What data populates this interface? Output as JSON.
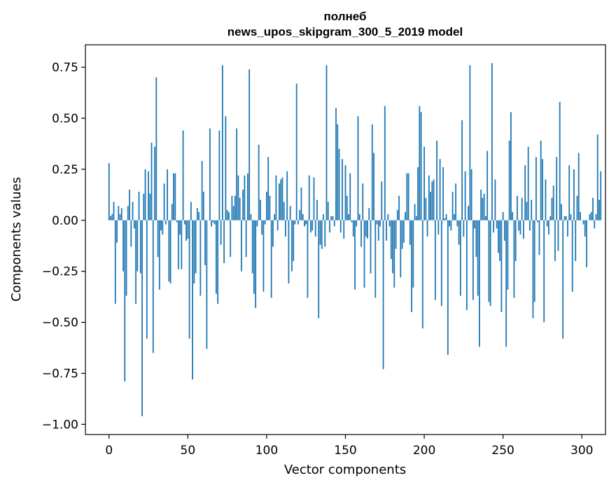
{
  "chart_data": {
    "type": "bar",
    "title_line1": "полнеб",
    "title_line2": "news_upos_skipgram_300_5_2019 model",
    "xlabel": "Vector components",
    "ylabel": "Components values",
    "xlim": [
      -15,
      315
    ],
    "ylim": [
      -1.05,
      0.86
    ],
    "xticks": [
      {
        "value": 0,
        "label": "0"
      },
      {
        "value": 50,
        "label": "50"
      },
      {
        "value": 100,
        "label": "100"
      },
      {
        "value": 150,
        "label": "150"
      },
      {
        "value": 200,
        "label": "200"
      },
      {
        "value": 250,
        "label": "250"
      },
      {
        "value": 300,
        "label": "300"
      }
    ],
    "yticks": [
      {
        "value": 0.75,
        "label": "0.75"
      },
      {
        "value": 0.5,
        "label": "0.50"
      },
      {
        "value": 0.25,
        "label": "0.25"
      },
      {
        "value": 0.0,
        "label": "0.00"
      },
      {
        "value": -0.25,
        "label": "−0.25"
      },
      {
        "value": -0.5,
        "label": "−0.50"
      },
      {
        "value": -0.75,
        "label": "−0.75"
      },
      {
        "value": -1.0,
        "label": "−1.00"
      }
    ],
    "bar_color": "#1f77b4",
    "values": [
      0.28,
      0.02,
      0.03,
      0.09,
      -0.41,
      -0.11,
      0.07,
      0.03,
      0.06,
      -0.25,
      -0.79,
      -0.37,
      0.07,
      0.15,
      -0.13,
      0.09,
      -0.04,
      -0.41,
      -0.25,
      0.14,
      -0.26,
      -0.96,
      0.13,
      0.25,
      -0.58,
      0.24,
      0.13,
      0.38,
      -0.65,
      0.36,
      0.7,
      -0.18,
      -0.34,
      -0.05,
      -0.07,
      0.18,
      -0.02,
      0.25,
      -0.3,
      -0.31,
      0.08,
      0.23,
      0.23,
      -0.01,
      -0.24,
      -0.07,
      -0.24,
      0.44,
      -0.02,
      -0.1,
      -0.09,
      -0.58,
      0.09,
      -0.78,
      -0.31,
      -0.26,
      0.06,
      0.04,
      -0.37,
      0.29,
      0.14,
      -0.22,
      -0.63,
      0.0,
      0.45,
      -0.03,
      -0.01,
      -0.02,
      -0.36,
      -0.41,
      0.44,
      -0.12,
      0.76,
      -0.21,
      0.51,
      0.05,
      0.04,
      -0.18,
      0.12,
      0.07,
      0.12,
      0.45,
      0.22,
      0.11,
      -0.25,
      0.15,
      0.22,
      -0.18,
      0.23,
      0.74,
      0.03,
      -0.26,
      -0.36,
      -0.43,
      -0.03,
      0.37,
      0.1,
      -0.07,
      -0.35,
      -0.02,
      0.14,
      0.31,
      0.12,
      -0.38,
      -0.13,
      0.03,
      0.22,
      -0.05,
      0.18,
      0.2,
      0.21,
      0.09,
      -0.08,
      0.24,
      -0.31,
      0.07,
      -0.25,
      -0.2,
      -0.02,
      0.67,
      -0.02,
      0.05,
      0.16,
      0.03,
      -0.03,
      -0.02,
      -0.38,
      0.22,
      -0.06,
      -0.05,
      0.21,
      -0.08,
      0.1,
      -0.48,
      -0.12,
      -0.14,
      0.03,
      -0.13,
      0.76,
      0.09,
      -0.06,
      0.02,
      0.02,
      -0.03,
      0.55,
      0.47,
      0.35,
      -0.06,
      0.3,
      -0.09,
      0.27,
      0.12,
      0.03,
      0.23,
      -0.01,
      -0.08,
      -0.34,
      -0.03,
      0.51,
      0.03,
      -0.13,
      0.18,
      -0.33,
      -0.08,
      -0.09,
      0.06,
      -0.26,
      0.47,
      0.33,
      -0.38,
      -0.02,
      -0.1,
      -0.03,
      0.19,
      -0.73,
      0.56,
      -0.1,
      0.03,
      -0.03,
      -0.19,
      -0.26,
      -0.33,
      -0.14,
      0.05,
      0.12,
      -0.28,
      -0.14,
      -0.11,
      0.04,
      0.23,
      0.23,
      -0.12,
      -0.45,
      -0.33,
      0.08,
      0.02,
      0.26,
      0.56,
      0.53,
      -0.53,
      0.36,
      0.11,
      -0.08,
      0.22,
      0.14,
      0.19,
      0.2,
      -0.39,
      0.39,
      -0.07,
      0.3,
      -0.42,
      0.26,
      0.01,
      0.03,
      -0.66,
      -0.03,
      -0.05,
      0.14,
      0.03,
      0.18,
      -0.03,
      -0.12,
      -0.37,
      0.49,
      -0.08,
      0.24,
      -0.44,
      0.07,
      0.76,
      0.25,
      -0.39,
      -0.04,
      -0.18,
      -0.37,
      -0.62,
      0.15,
      0.11,
      0.13,
      0.02,
      0.34,
      -0.4,
      -0.42,
      0.77,
      -0.06,
      0.2,
      -0.04,
      -0.16,
      -0.2,
      -0.45,
      0.04,
      -0.1,
      -0.62,
      -0.34,
      0.39,
      0.53,
      0.04,
      -0.38,
      -0.2,
      0.12,
      -0.05,
      -0.07,
      0.11,
      -0.09,
      0.27,
      0.09,
      0.36,
      -0.05,
      0.1,
      -0.48,
      -0.4,
      0.31,
      -0.01,
      -0.17,
      0.39,
      0.3,
      -0.5,
      0.2,
      -0.03,
      -0.07,
      0.02,
      0.11,
      0.17,
      -0.2,
      0.31,
      -0.15,
      0.58,
      0.08,
      -0.58,
      0.02,
      0.02,
      -0.08,
      0.27,
      0.03,
      -0.35,
      0.25,
      -0.2,
      0.12,
      0.33,
      0.04,
      0.0,
      -0.02,
      -0.08,
      -0.23,
      0.0,
      0.03,
      0.04,
      0.11,
      -0.04,
      0.03,
      0.42,
      0.1,
      0.24
    ]
  }
}
